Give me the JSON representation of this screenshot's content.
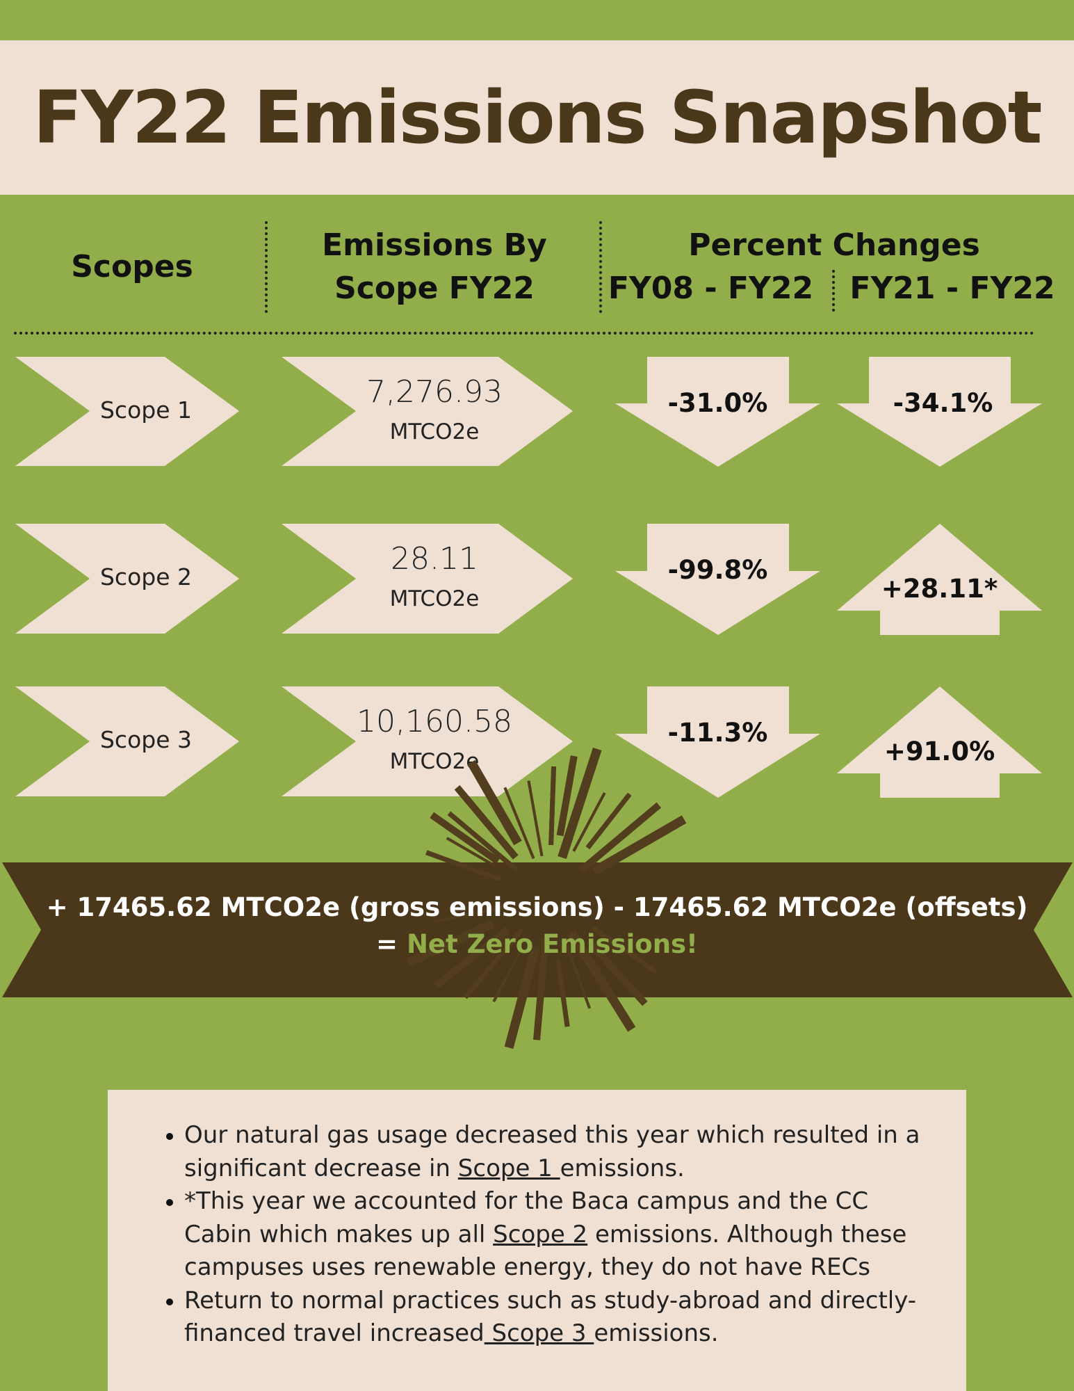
{
  "title": "FY22 Emissions Snapshot",
  "headers": {
    "scopes": "Scopes",
    "emissions_line1": "Emissions By",
    "emissions_line2": "Scope FY22",
    "percent_changes": "Percent Changes",
    "period_a": "FY08 - FY22",
    "period_b": "FY21 - FY22"
  },
  "rows": [
    {
      "scope": "Scope 1",
      "value": "7,276.93",
      "unit": "MTCO2e",
      "change_a": "-31.0%",
      "change_a_dir": "down",
      "change_b": "-34.1%",
      "change_b_dir": "down"
    },
    {
      "scope": "Scope 2",
      "value": "28.11",
      "unit": "MTCO2e",
      "change_a": "-99.8%",
      "change_a_dir": "down",
      "change_b": "+28.11*",
      "change_b_dir": "up"
    },
    {
      "scope": "Scope 3",
      "value": "10,160.58",
      "unit": "MTCO2e",
      "change_a": "-11.3%",
      "change_a_dir": "down",
      "change_b": "+91.0%",
      "change_b_dir": "up"
    }
  ],
  "banner": {
    "line1": "+ 17465.62 MTCO2e (gross emissions) - 17465.62 MTCO2e (offsets)",
    "line2_prefix": "= ",
    "line2_highlight": "Net Zero Emissions!"
  },
  "notes": [
    {
      "before": "Our natural gas usage decreased this year which resulted in a significant decrease in ",
      "link": "Scope 1 ",
      "after": "emissions."
    },
    {
      "before": "*This year we accounted for the Baca campus and the CC Cabin which makes up all ",
      "link": "Scope 2",
      "after": " emissions. Although these campuses uses renewable energy, they do not have RECs"
    },
    {
      "before": "Return to normal practices such as study-abroad and directly-financed travel increased",
      "link": " Scope 3 ",
      "after": "emissions."
    }
  ],
  "colors": {
    "background": "#92ae4a",
    "cream": "#efe0d3",
    "brown": "#4b3719",
    "highlight_green": "#92ae4a"
  }
}
